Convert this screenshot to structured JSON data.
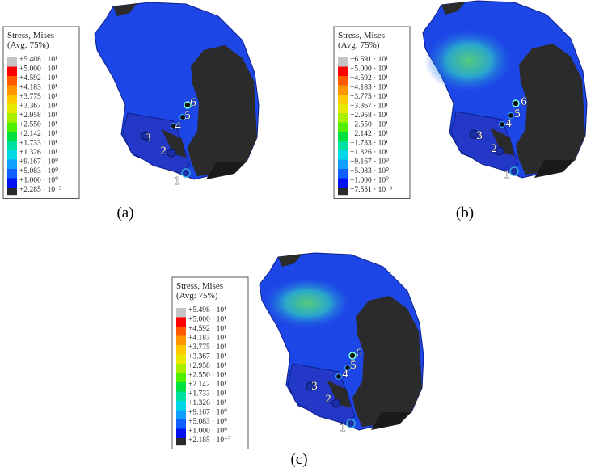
{
  "panels": [
    {
      "legend": {
        "title": "Stress, Mises",
        "subtitle": "(Avg: 75%)",
        "labels": [
          "+5.408 · 10¹",
          "+5.000 · 10¹",
          "+4.592 · 10¹",
          "+4.183 · 10¹",
          "+3.775 · 10¹",
          "+3.367 · 10¹",
          "+2.958 · 10¹",
          "+2.550 · 10¹",
          "+2.142 · 10¹",
          "+1.733 · 10¹",
          "+1.326 · 10¹",
          "+9.167 · 10⁰",
          "+5.083 · 10⁰",
          "+1.000 · 10⁰",
          "+2.285 · 10⁻³"
        ]
      },
      "hole_labels": [
        "6",
        "5",
        "4",
        "3",
        "2",
        "1"
      ],
      "caption": "(a)"
    },
    {
      "legend": {
        "title": "Stress, Mises",
        "subtitle": "(Avg: 75%)",
        "labels": [
          "+6.591 · 10¹",
          "+5.000 · 10¹",
          "+4.592 · 10¹",
          "+4.183 · 10¹",
          "+3.775 · 10¹",
          "+3.367 · 10¹",
          "+2.958 · 10¹",
          "+2.550 · 10¹",
          "+2.142 · 10¹",
          "+1.733 · 10¹",
          "+1.326 · 10¹",
          "+9.167 · 10⁰",
          "+5.083 · 10⁰",
          "+1.000 · 10⁰",
          "+7.551 · 10⁻³"
        ]
      },
      "hole_labels": [
        "6",
        "5",
        "4",
        "3",
        "2",
        "1"
      ],
      "caption": "(b)"
    },
    {
      "legend": {
        "title": "Stress, Mises",
        "subtitle": "(Avg: 75%)",
        "labels": [
          "+5.498 · 10¹",
          "+5.000 · 10¹",
          "+4.592 · 10¹",
          "+4.183 · 10¹",
          "+3.775 · 10¹",
          "+3.367 · 10¹",
          "+2.958 · 10¹",
          "+2.550 · 10¹",
          "+2.142 · 10¹",
          "+1.733 · 10¹",
          "+1.326 · 10¹",
          "+9.167 · 10⁰",
          "+5.083 · 10⁰",
          "+1.000 · 10⁰",
          "+2.185 · 10⁻³"
        ]
      },
      "hole_labels": [
        "6",
        "5",
        "4",
        "3",
        "2",
        "1"
      ],
      "caption": "(c)"
    }
  ]
}
